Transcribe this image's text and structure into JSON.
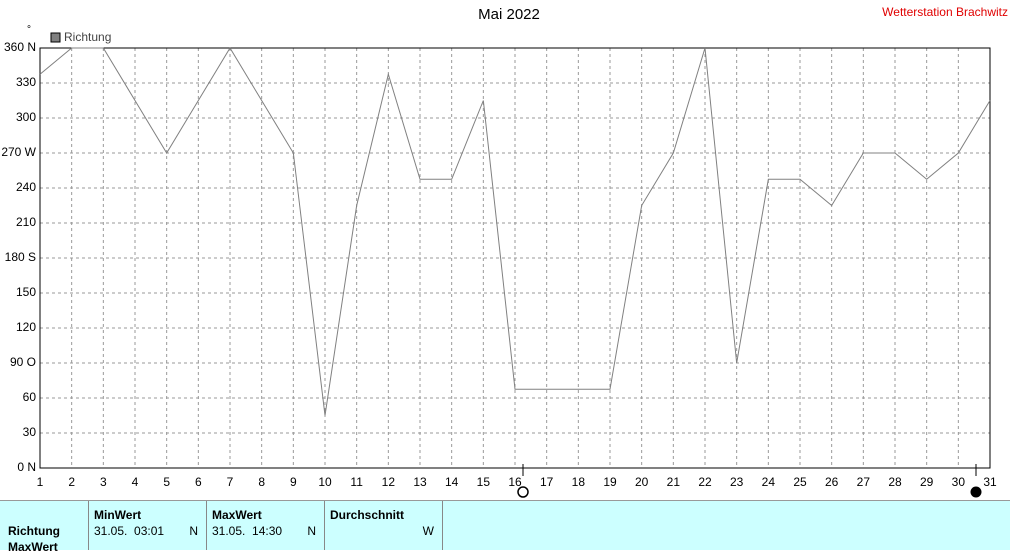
{
  "chart_data": {
    "type": "line",
    "title": "Mai 2022",
    "source": "Wetterstation Brachwitz",
    "y_unit": "°",
    "x": [
      1,
      2,
      3,
      4,
      5,
      6,
      7,
      8,
      9,
      10,
      11,
      12,
      13,
      14,
      15,
      16,
      17,
      18,
      19,
      20,
      21,
      22,
      23,
      24,
      25,
      26,
      27,
      28,
      29,
      30,
      31
    ],
    "series": [
      {
        "name": "Richtung",
        "color": "#808080",
        "values": [
          337.5,
          360,
          360,
          315,
          270,
          315,
          360,
          315,
          270,
          45,
          225,
          337.5,
          247.5,
          247.5,
          315,
          67.5,
          67.5,
          67.5,
          67.5,
          225,
          270,
          360,
          90,
          247.5,
          247.5,
          225,
          270,
          270,
          247.5,
          270,
          315
        ]
      }
    ],
    "xlim": [
      1,
      31
    ],
    "xticks": [
      1,
      2,
      3,
      4,
      5,
      6,
      7,
      8,
      9,
      10,
      11,
      12,
      13,
      14,
      15,
      16,
      17,
      18,
      19,
      20,
      21,
      22,
      23,
      24,
      25,
      26,
      27,
      28,
      29,
      30,
      31
    ],
    "ylim": [
      0,
      360
    ],
    "yticks": [
      {
        "value": 0,
        "label": "0  N"
      },
      30,
      60,
      {
        "value": 90,
        "label": "90  O"
      },
      120,
      150,
      {
        "value": 180,
        "label": "180 S"
      },
      210,
      240,
      {
        "value": 270,
        "label": "270 W"
      },
      300,
      330,
      {
        "value": 360,
        "label": "360 N"
      }
    ],
    "grid": true
  },
  "table": {
    "headers": [
      "MinWert",
      "MaxWert",
      "Durchschnitt"
    ],
    "rows": [
      {
        "label": "Richtung",
        "min_time": "31.05.  03:01",
        "min_dir": "N",
        "max_time": "31.05.  14:30",
        "max_dir": "N",
        "avg": "W"
      }
    ],
    "next_row_label": "MaxWert"
  }
}
